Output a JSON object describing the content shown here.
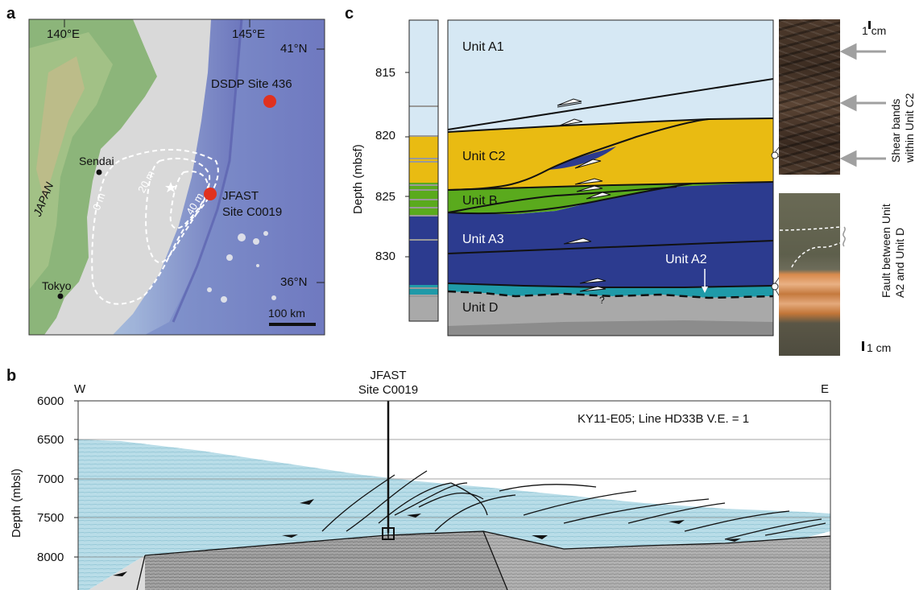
{
  "panels": {
    "a": "a",
    "b": "b",
    "c": "c"
  },
  "map": {
    "lon_labels": [
      "140°E",
      "145°E"
    ],
    "lat_labels": [
      "41°N",
      "36°N"
    ],
    "site_labels": {
      "dsdp": "DSDP Site 436",
      "jfast_line1": "JFAST",
      "jfast_line2": "Site C0019"
    },
    "cities": [
      "Sendai",
      "Tokyo"
    ],
    "country": "JAPAN",
    "contours": [
      "0 m",
      "20 m",
      "40 m"
    ],
    "scale_bar": "100 km",
    "colors": {
      "site_marker": "#e0311f",
      "ocean": "#7c86c4",
      "land": "#7ea96a"
    }
  },
  "stratigraphy": {
    "depth_axis_label": "Depth (mbsf)",
    "depth_ticks": [
      "815",
      "820",
      "825",
      "830"
    ],
    "units": [
      "Unit A1",
      "Unit C2",
      "Unit B",
      "Unit A3",
      "Unit A2",
      "Unit D"
    ],
    "question_mark": "?",
    "colors": {
      "A1": "#d6e8f4",
      "C2": "#e9bb12",
      "B": "#5aaa1d",
      "A3": "#2c3b8f",
      "A2": "#1f9aa8",
      "D": "#a9a9a9"
    }
  },
  "photos": {
    "top_scale": "1 cm",
    "top_caption_line1": "Shear bands",
    "top_caption_line2": "within Unit C2",
    "bottom_scale": "1 cm",
    "bottom_caption_line1": "Fault between Unit",
    "bottom_caption_line2": "A2 and Unit D"
  },
  "section": {
    "west": "W",
    "east": "E",
    "site_line1": "JFAST",
    "site_line2": "Site C0019",
    "survey_label": "KY11-E05; Line HD33B V.E. = 1",
    "depth_axis_label": "Depth (mbsl)",
    "depth_ticks": [
      "6000",
      "6500",
      "7000",
      "7500",
      "8000"
    ]
  }
}
